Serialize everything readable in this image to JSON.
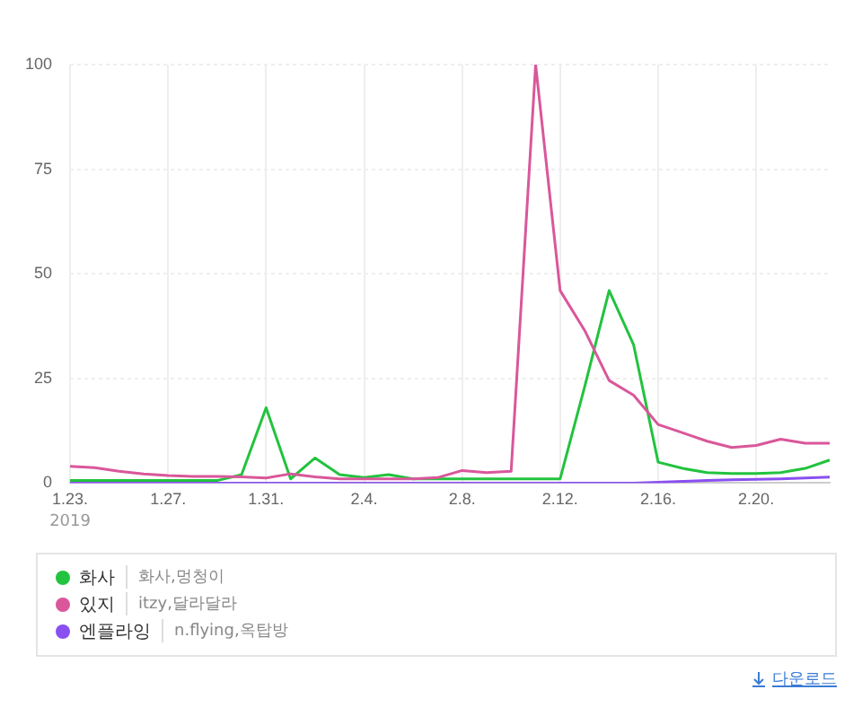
{
  "chart_data": {
    "type": "line",
    "categories": [
      "1.23.",
      null,
      null,
      null,
      "1.27.",
      null,
      null,
      null,
      "1.31.",
      null,
      null,
      null,
      "2.4.",
      null,
      null,
      null,
      "2.8.",
      null,
      null,
      null,
      "2.12.",
      null,
      null,
      null,
      "2.16.",
      null,
      null,
      null,
      "2.20.",
      null,
      null,
      null
    ],
    "series": [
      {
        "name": "화사",
        "color": "#22c33e",
        "values": [
          0.6,
          0.6,
          0.6,
          0.6,
          0.6,
          0.6,
          0.6,
          2,
          18,
          1,
          6,
          2,
          1.3,
          2,
          1,
          1,
          1,
          1,
          1,
          1,
          1,
          23,
          46,
          33,
          5,
          3.5,
          2.5,
          2.3,
          2.3,
          2.5,
          3.5,
          5.5
        ]
      },
      {
        "name": "있지",
        "color": "#d9579a",
        "values": [
          4,
          3.7,
          2.8,
          2.2,
          1.8,
          1.6,
          1.6,
          1.5,
          1.2,
          2.2,
          1.5,
          1,
          1,
          1,
          1,
          1.3,
          3,
          2.5,
          2.8,
          100,
          46,
          36.5,
          24.5,
          21,
          14,
          12,
          10,
          8.5,
          9,
          10.5,
          9.5,
          9.5
        ]
      },
      {
        "name": "엔플라잉",
        "color": "#8a4ff0",
        "values": [
          0,
          0,
          0,
          0,
          0,
          0,
          0,
          0,
          0,
          0,
          0,
          0,
          0,
          0,
          0,
          0,
          0,
          0,
          0,
          0,
          0,
          0,
          0,
          0,
          0.2,
          0.4,
          0.6,
          0.8,
          0.9,
          1,
          1.2,
          1.4
        ]
      }
    ],
    "ylim": [
      0,
      100
    ],
    "yticks": [
      0,
      25,
      50,
      75,
      100
    ],
    "grid": true,
    "legend": "bottom",
    "marker": "none",
    "line_style": "solid",
    "annotations": [
      "2019",
      "화사,멍청이",
      "itzy,달라달라",
      "n.flying,옥탑방",
      "다운로드"
    ]
  }
}
